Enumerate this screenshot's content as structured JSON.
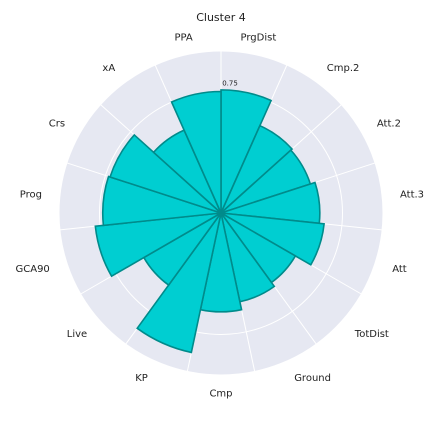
{
  "chart_data": {
    "type": "bar",
    "subtype": "polar",
    "title": "Cluster 4",
    "categories": [
      "PrgDist",
      "Cmp.2",
      "Att.2",
      "Att.3",
      "Att",
      "TotDist",
      "Ground",
      "Cmp",
      "KP",
      "Live",
      "GCA90",
      "Prog",
      "Crs",
      "xA",
      "PPA"
    ],
    "values": [
      0.76,
      0.59,
      0.58,
      0.61,
      0.64,
      0.53,
      0.56,
      0.61,
      0.88,
      0.55,
      0.78,
      0.73,
      0.72,
      0.56,
      0.75
    ],
    "rlim": [
      0,
      1.0
    ],
    "rticks": [
      0.75
    ],
    "grid": true,
    "colors": {
      "bar_fill": "#00CED1",
      "bar_edge": "#008B8B",
      "panel": "#E6E8F2",
      "grid": "#ffffff"
    }
  }
}
